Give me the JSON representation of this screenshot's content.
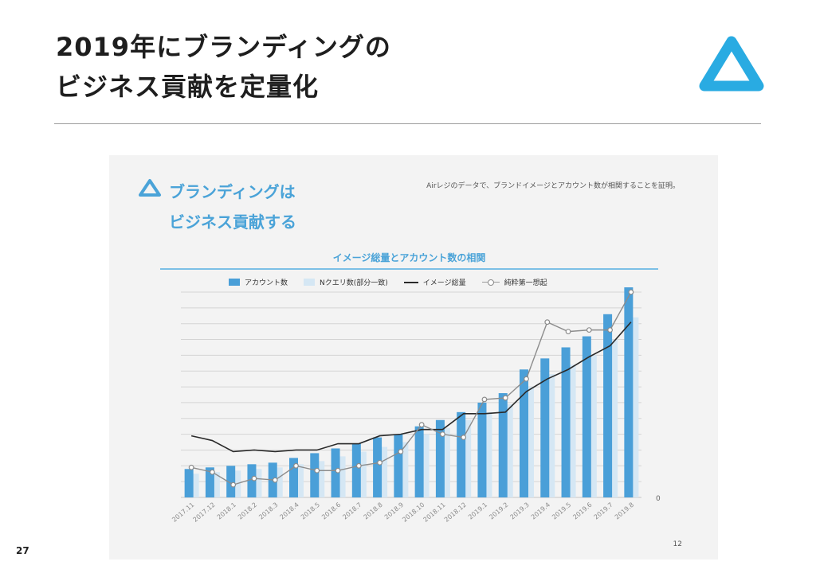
{
  "page": {
    "title_line1": "2019年にブランディングの",
    "title_line2": "ビジネス貢献を定量化",
    "page_number": "27",
    "accent_color": "#29abe2"
  },
  "slide": {
    "headline_line1": "ブランディングは",
    "headline_line2": "ビジネス貢献する",
    "note": "Airレジのデータで、ブランドイメージとアカウント数が相関することを証明。",
    "slide_number": "12",
    "accent_color": "#4aa3d8"
  },
  "chart_data": {
    "type": "bar",
    "title": "イメージ総量とアカウント数の相関",
    "categories": [
      "2017.11",
      "2017.12",
      "2018.1",
      "2018.2",
      "2018.3",
      "2018.4",
      "2018.5",
      "2018.6",
      "2018.7",
      "2018.8",
      "2018.9",
      "2018.10",
      "2018.11",
      "2018.12",
      "2019.1",
      "2019.2",
      "2019.3",
      "2019.4",
      "2019.5",
      "2019.6",
      "2019.7",
      "2019.8"
    ],
    "ylim": [
      0,
      13
    ],
    "y_zero_label": "0",
    "grid": true,
    "legend_position": "top",
    "series": [
      {
        "name": "アカウント数",
        "kind": "bar",
        "color": "#4a9fd8",
        "values": [
          1.8,
          1.9,
          2.0,
          2.1,
          2.2,
          2.5,
          2.8,
          3.1,
          3.4,
          3.8,
          4.0,
          4.5,
          4.9,
          5.4,
          6.0,
          6.6,
          8.1,
          8.8,
          9.5,
          10.2,
          11.6,
          13.3
        ]
      },
      {
        "name": "Nクエリ数(部分一致)",
        "kind": "bar",
        "color": "#d5e7f4",
        "values": [
          1.5,
          1.6,
          1.7,
          1.8,
          1.9,
          2.1,
          2.3,
          2.6,
          2.9,
          3.2,
          3.5,
          4.0,
          4.4,
          4.9,
          5.4,
          5.9,
          7.0,
          7.8,
          8.4,
          9.0,
          10.0,
          11.4
        ]
      },
      {
        "name": "イメージ総量",
        "kind": "line",
        "color": "#2a2a2a",
        "values": [
          3.9,
          3.6,
          2.9,
          3.0,
          2.9,
          3.0,
          3.0,
          3.4,
          3.4,
          3.9,
          4.0,
          4.3,
          4.3,
          5.3,
          5.3,
          5.4,
          6.7,
          7.5,
          8.1,
          8.9,
          9.6,
          11.1
        ]
      },
      {
        "name": "純粋第一想起",
        "kind": "line-marker",
        "color": "#8c8c8c",
        "values": [
          1.9,
          1.6,
          0.8,
          1.2,
          1.1,
          2.0,
          1.7,
          1.7,
          2.0,
          2.2,
          2.9,
          4.6,
          4.0,
          3.8,
          6.2,
          6.3,
          7.5,
          11.1,
          10.5,
          10.6,
          10.6,
          13.0
        ]
      }
    ]
  }
}
